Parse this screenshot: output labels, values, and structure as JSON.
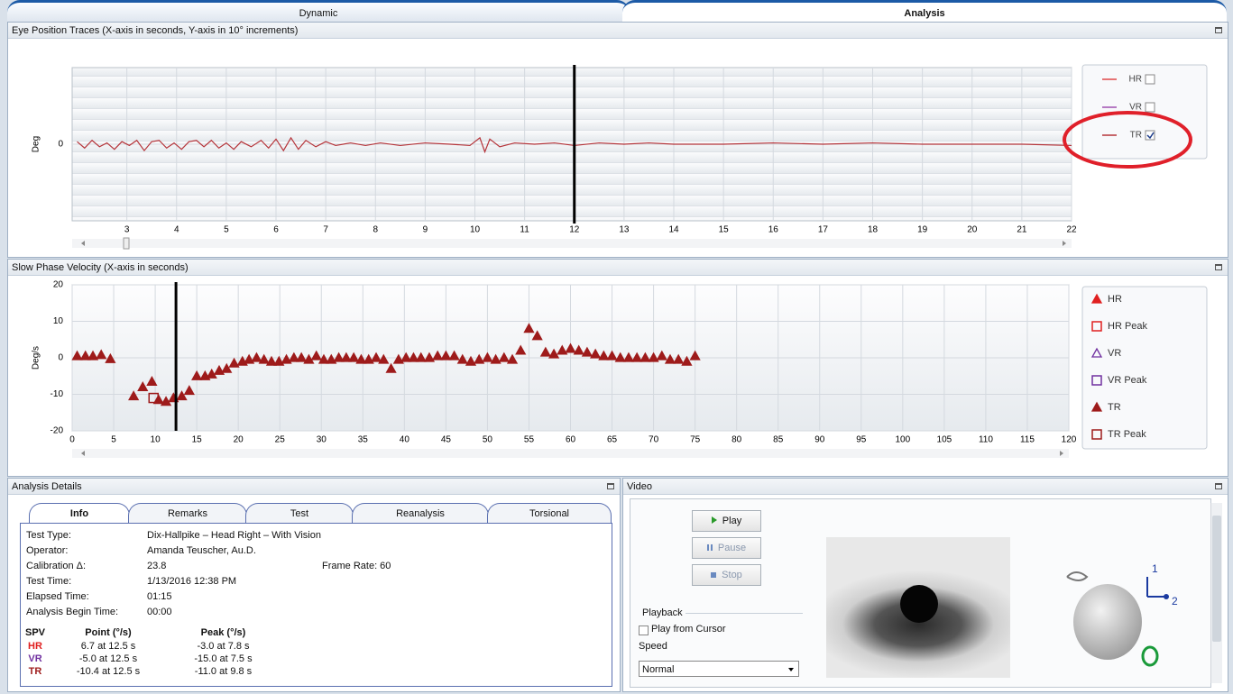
{
  "tabs": [
    "Dynamic",
    "Analysis"
  ],
  "eye_position": {
    "title": "Eye Position Traces (X-axis in seconds, Y-axis in 10° increments)",
    "chart": {
      "type": "line",
      "ylabel": "Deg",
      "x": [
        2.0,
        2.15,
        2.3,
        2.45,
        2.6,
        2.75,
        2.9,
        3.05,
        3.2,
        3.35,
        3.5,
        3.65,
        3.8,
        3.95,
        4.1,
        4.25,
        4.4,
        4.55,
        4.7,
        4.85,
        5.0,
        5.15,
        5.3,
        5.5,
        5.7,
        5.85,
        6.0,
        6.15,
        6.3,
        6.45,
        6.6,
        6.8,
        7.0,
        7.2,
        7.5,
        7.8,
        8.1,
        8.5,
        9.0,
        9.5,
        9.9,
        10.1,
        10.2,
        10.3,
        10.5,
        10.8,
        11.2,
        11.6,
        12.0,
        12.5,
        13.0,
        13.5,
        14.0,
        15.0,
        16.0,
        17.0,
        18.0,
        19.0,
        20.0,
        21.0,
        22.0
      ],
      "series": [
        {
          "name": "HR",
          "color": "#e04848",
          "checked": false
        },
        {
          "name": "VR",
          "color": "#a050b0",
          "checked": false
        },
        {
          "name": "TR",
          "color": "#b5343a",
          "checked": true,
          "values": [
            2,
            -3,
            3,
            -2,
            1,
            -4,
            2,
            -1,
            3,
            -5,
            2,
            3,
            -3,
            1,
            -4,
            2,
            3,
            -2,
            3,
            -3,
            1,
            -4,
            2,
            -2,
            3,
            -3,
            4,
            -5,
            5,
            -4,
            3,
            -2,
            2,
            -1,
            1,
            -1,
            1,
            -1,
            1,
            0,
            -1,
            5,
            -6,
            4,
            -2,
            1,
            0,
            1,
            -1,
            1,
            0,
            1,
            0,
            0,
            1,
            0,
            1,
            0,
            0,
            0,
            -1
          ]
        }
      ],
      "xlim": [
        1.9,
        22
      ],
      "ylim": [
        -60,
        60
      ],
      "xticks": [
        3,
        4,
        5,
        6,
        7,
        8,
        9,
        10,
        11,
        12,
        13,
        14,
        15,
        16,
        17,
        18,
        19,
        20,
        21,
        22
      ],
      "yticks": [
        0
      ],
      "grid": true,
      "cursor": 12
    }
  },
  "spv": {
    "title": "Slow Phase Velocity (X-axis in seconds)",
    "chart": {
      "type": "scatter",
      "ylabel": "Deg/s",
      "series": [
        {
          "name": "HR",
          "color": "#e02020",
          "marker": "triangle",
          "filled": true
        },
        {
          "name": "HR Peak",
          "color": "#e02020",
          "marker": "square",
          "filled": false
        },
        {
          "name": "VR",
          "color": "#7030a0",
          "marker": "triangle",
          "filled": false
        },
        {
          "name": "VR Peak",
          "color": "#7030a0",
          "marker": "square",
          "filled": false
        },
        {
          "name": "TR",
          "color": "#9e1b1b",
          "marker": "triangle",
          "filled": true,
          "x": [
            0.6,
            1.6,
            2.5,
            3.5,
            4.6,
            7.4,
            8.5,
            9.6,
            10.4,
            11.3,
            12.2,
            13.2,
            14.1,
            15,
            16,
            16.8,
            17.7,
            18.6,
            19.5,
            20.5,
            21.3,
            22.2,
            23.1,
            24,
            24.9,
            25.8,
            26.7,
            27.6,
            28.5,
            29.4,
            30.3,
            31.2,
            32.1,
            33,
            33.9,
            34.8,
            35.7,
            36.6,
            37.5,
            38.4,
            39.3,
            40.2,
            41.1,
            42,
            43,
            44,
            45,
            46,
            47,
            48,
            49,
            50,
            51,
            52,
            53,
            54,
            55,
            56,
            57,
            58,
            59,
            60,
            61,
            62,
            63,
            64,
            65,
            66,
            67,
            68,
            69,
            70,
            71,
            72,
            73,
            74,
            75
          ],
          "values": [
            0.5,
            0.5,
            0.5,
            0.8,
            -0.3,
            -10.5,
            -8,
            -6.5,
            -11.5,
            -12,
            -11,
            -10.5,
            -9,
            -5,
            -5,
            -4.5,
            -3.5,
            -3,
            -1.5,
            -1,
            -0.5,
            0,
            -0.5,
            -1,
            -1,
            -0.5,
            0,
            0,
            -0.5,
            0.5,
            -0.5,
            -0.5,
            0,
            0,
            0,
            -0.5,
            -0.5,
            0,
            -0.5,
            -3,
            -0.5,
            0,
            0,
            0,
            0,
            0.5,
            0.5,
            0.5,
            -0.5,
            -1,
            -0.5,
            0,
            -0.5,
            0,
            -0.5,
            2,
            8,
            6,
            1.5,
            1,
            2,
            2.5,
            2,
            1.5,
            1,
            0.5,
            0.5,
            0,
            0,
            0,
            0,
            0,
            0.5,
            -0.5,
            -0.5,
            -1,
            0.5
          ]
        },
        {
          "name": "TR Peak",
          "color": "#9e1b1b",
          "marker": "square",
          "filled": false,
          "x": [
            9.8
          ],
          "values": [
            -11
          ]
        }
      ],
      "xlim": [
        0,
        120
      ],
      "ylim": [
        -20,
        20
      ],
      "xticks": [
        0,
        5,
        10,
        15,
        20,
        25,
        30,
        35,
        40,
        45,
        50,
        55,
        60,
        65,
        70,
        75,
        80,
        85,
        90,
        95,
        100,
        105,
        110,
        115,
        120
      ],
      "yticks": [
        -20,
        -10,
        0,
        10,
        20
      ],
      "grid": true,
      "cursor": 12.5
    }
  },
  "details": {
    "title": "Analysis Details",
    "tabs": [
      "Info",
      "Remarks",
      "Test",
      "Reanalysis",
      "Torsional"
    ],
    "info": [
      [
        "Test Type:",
        "Dix-Hallpike – Head Right – With Vision"
      ],
      [
        "Operator:",
        "Amanda Teuscher, Au.D."
      ],
      [
        "Calibration Δ:",
        "23.8"
      ],
      [
        "Test Time:",
        "1/13/2016 12:38 PM"
      ],
      [
        "Elapsed Time:",
        "01:15"
      ],
      [
        "Analysis Begin Time:",
        "00:00"
      ]
    ],
    "frame_rate": "Frame Rate: 60",
    "spv": {
      "header": [
        "SPV",
        "Point (°/s)",
        "Peak (°/s)"
      ],
      "rows": [
        [
          "HR",
          "6.7 at 12.5 s",
          "-3.0 at 7.8 s"
        ],
        [
          "VR",
          "-5.0 at 12.5 s",
          "-15.0 at 7.5 s"
        ],
        [
          "TR",
          "-10.4 at 12.5 s",
          "-11.0 at 9.8 s"
        ]
      ]
    }
  },
  "video": {
    "title": "Video",
    "buttons": [
      "Play",
      "Pause",
      "Stop"
    ],
    "playback": "Playback",
    "play_from_cursor": "Play from Cursor",
    "speed_label": "Speed",
    "speed": "Normal",
    "axes": [
      "1",
      "2"
    ]
  }
}
